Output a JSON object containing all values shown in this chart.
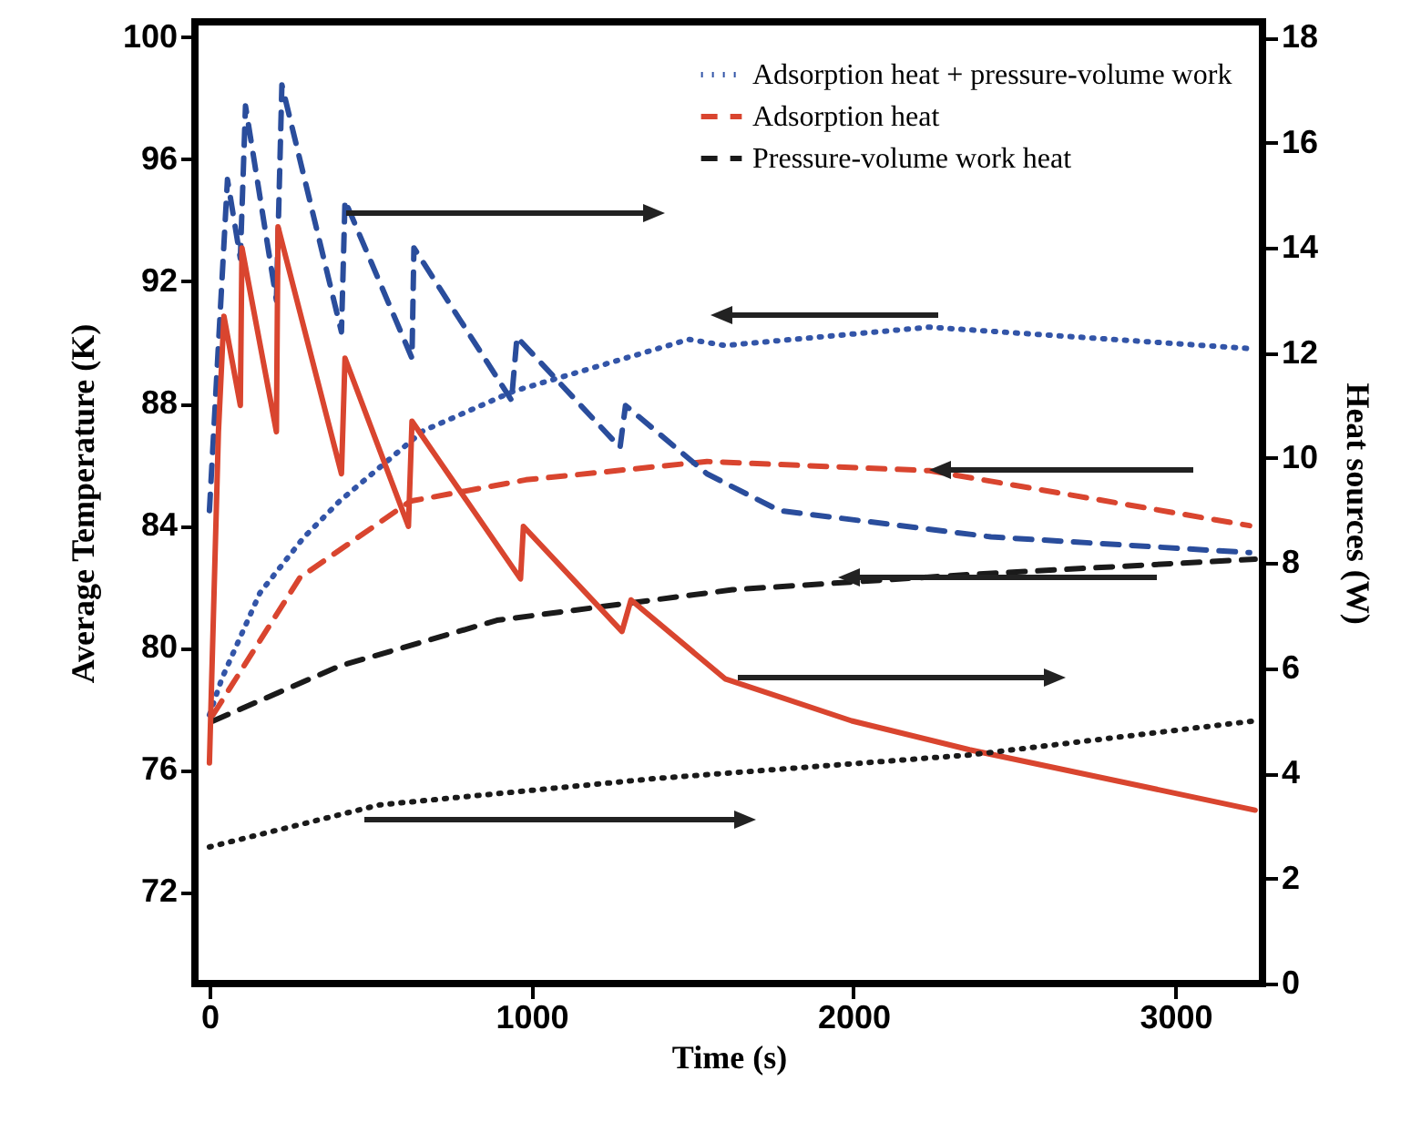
{
  "chart_data": {
    "type": "line",
    "xlabel": "Time (s)",
    "ylabel": "Average Temperature (K)",
    "y2label": "Heat sources (W)",
    "xlim": [
      -45,
      3270
    ],
    "xticks": [
      0,
      1000,
      2000,
      3000
    ],
    "ylim": [
      69,
      100.5
    ],
    "yticks": [
      72,
      76,
      80,
      84,
      88,
      92,
      96,
      100
    ],
    "y2lim": [
      0,
      18.3
    ],
    "y2ticks": [
      0,
      2,
      4,
      6,
      8,
      10,
      12,
      14,
      16,
      18
    ],
    "legend": "top right",
    "series": [
      {
        "name": "Adsorption heat + pressure-volume work",
        "color": "#3355a8",
        "line_style": "dotted",
        "x": [
          0,
          39,
          157,
          292,
          404,
          663,
          944,
          1489,
          1601,
          2236,
          3230
        ],
        "values": [
          77.8,
          79.0,
          81.8,
          83.6,
          84.8,
          87.1,
          88.4,
          90.1,
          89.9,
          90.5,
          89.8
        ]
      },
      {
        "name": "Adsorption heat",
        "color": "#d9452f",
        "line_style": "dashed",
        "x": [
          11,
          281,
          624,
          983,
          1545,
          2236,
          3118,
          3230
        ],
        "values": [
          77.8,
          82.3,
          84.8,
          85.5,
          86.1,
          85.8,
          84.2,
          84.0
        ]
      },
      {
        "name": "Pressure-volume work heat",
        "color": "#1a1a1a",
        "line_style": "dashed",
        "x": [
          11,
          404,
          893,
          1624,
          2360,
          3247
        ],
        "values": [
          77.6,
          79.4,
          80.9,
          81.9,
          82.4,
          82.9
        ]
      },
      {
        "color": "#2a4d9c",
        "line_style": "dashed",
        "axis": "y2",
        "x": [
          0,
          56,
          96,
          112,
          208,
          225,
          410,
          421,
          629,
          635,
          938,
          955,
          1275,
          1292,
          1545,
          1770,
          2427,
          3230
        ],
        "values": [
          9.0,
          15.3,
          13.8,
          16.7,
          13.0,
          17.1,
          12.4,
          14.9,
          11.9,
          14.0,
          11.1,
          12.3,
          10.2,
          11.0,
          9.7,
          9.0,
          8.5,
          8.2
        ]
      },
      {
        "color": "#d9452f",
        "line_style": "solid",
        "axis": "y2",
        "x": [
          0,
          28,
          45,
          96,
          101,
          208,
          213,
          410,
          421,
          618,
          629,
          966,
          975,
          1281,
          1309,
          1601,
          1994,
          2360,
          3247
        ],
        "values": [
          4.2,
          10.5,
          12.7,
          11.0,
          14.0,
          10.5,
          14.4,
          9.7,
          11.9,
          8.7,
          10.7,
          7.7,
          8.7,
          6.7,
          7.3,
          5.8,
          5.0,
          4.45,
          3.3
        ]
      },
      {
        "color": "#1a1a1a",
        "line_style": "dotted",
        "axis": "y2",
        "x": [
          0,
          528,
          1382,
          2360,
          3247
        ],
        "values": [
          2.6,
          3.4,
          3.9,
          4.35,
          5.0
        ]
      }
    ]
  }
}
